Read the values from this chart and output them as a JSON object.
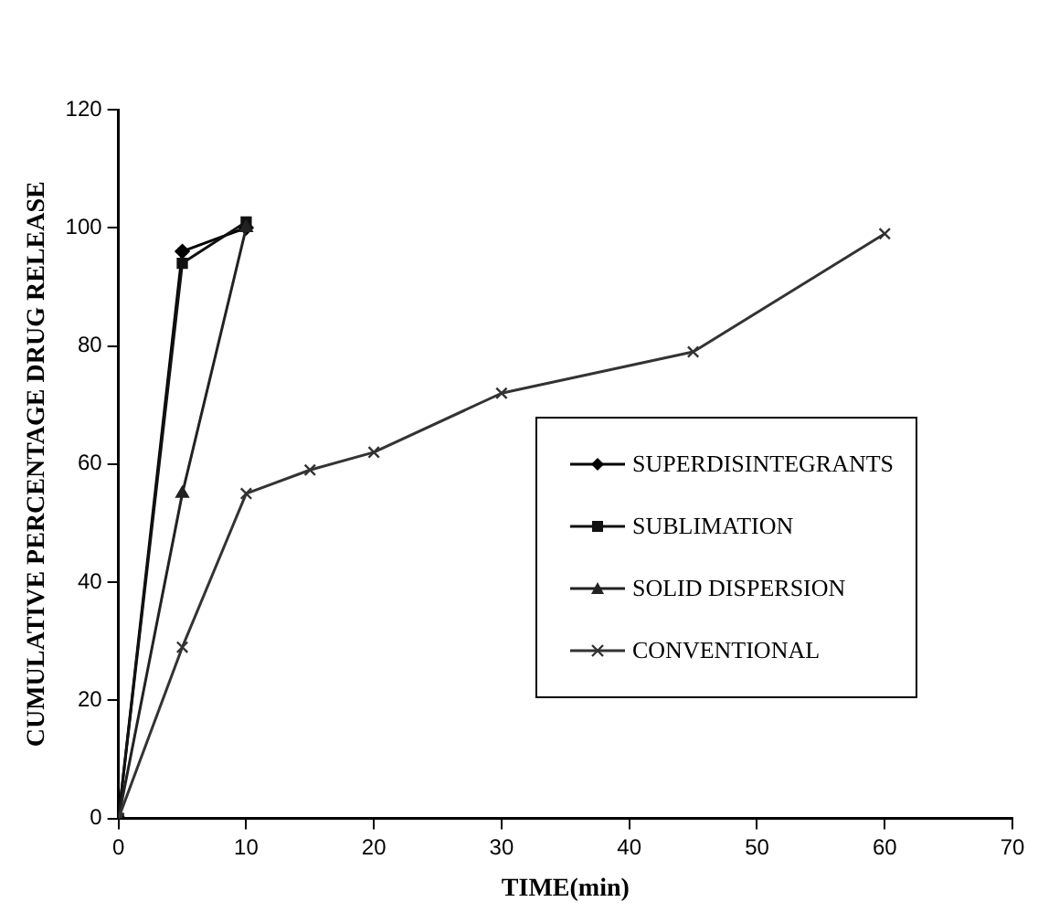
{
  "chart_data": {
    "type": "line",
    "xlabel": "TIME(min)",
    "ylabel": "CUMULATIVE PERCENTAGE DRUG RELEASE",
    "xlim": [
      0,
      70
    ],
    "xticks": [
      0,
      10,
      20,
      30,
      40,
      50,
      60,
      70
    ],
    "ylim": [
      0,
      120
    ],
    "yticks": [
      0,
      20,
      40,
      60,
      80,
      100,
      120
    ],
    "grid": false,
    "legend": "right",
    "line_style": "solid",
    "series": [
      {
        "name": "SUPERDISINTEGRANTS",
        "color": "#000000",
        "marker": "diamond",
        "x": [
          0,
          5,
          10
        ],
        "values": [
          0,
          96,
          100
        ]
      },
      {
        "name": "SUBLIMATION",
        "color": "#111111",
        "marker": "square",
        "x": [
          0,
          5,
          10
        ],
        "values": [
          0,
          94,
          101
        ]
      },
      {
        "name": "SOLID DISPERSION",
        "color": "#222222",
        "marker": "triangle",
        "x": [
          0,
          5,
          10
        ],
        "values": [
          0,
          55,
          100
        ]
      },
      {
        "name": "CONVENTIONAL",
        "color": "#333333",
        "marker": "cross",
        "x": [
          0,
          5,
          10,
          15,
          20,
          30,
          45,
          60
        ],
        "values": [
          0,
          29,
          55,
          59,
          62,
          72,
          79,
          99
        ]
      }
    ]
  }
}
